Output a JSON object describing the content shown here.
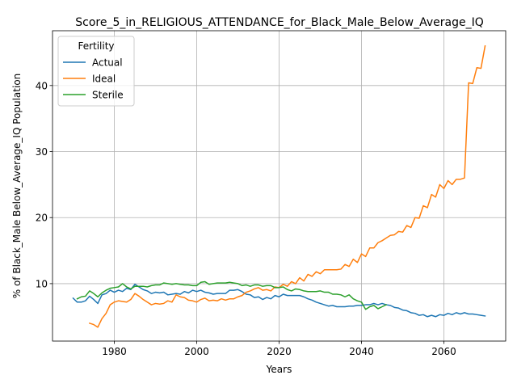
{
  "chart_data": {
    "type": "line",
    "title": "Score_5_in_RELIGIOUS_ATTENDANCE_for_Black_Male_Below_Average_IQ",
    "xlabel": "Years",
    "ylabel": "% of Black_Male Below_Average_IQ Population",
    "xlim": [
      1965,
      2075
    ],
    "ylim": [
      1.3,
      48.3
    ],
    "xticks": [
      1980,
      2000,
      2020,
      2040,
      2060
    ],
    "yticks": [
      10,
      20,
      30,
      40
    ],
    "grid": true,
    "legend": {
      "title": "Fertility",
      "placement": "top-left"
    },
    "series": [
      {
        "name": "Actual",
        "color": "#1f77b4",
        "points": [
          [
            1970,
            7.8
          ],
          [
            1971,
            7.2
          ],
          [
            1972,
            7.2
          ],
          [
            1973,
            7.4
          ],
          [
            1974,
            8.1
          ],
          [
            1975,
            7.6
          ],
          [
            1976,
            7.0
          ],
          [
            1977,
            8.3
          ],
          [
            1978,
            8.5
          ],
          [
            1979,
            9.0
          ],
          [
            1980,
            8.7
          ],
          [
            1981,
            9.0
          ],
          [
            1982,
            8.8
          ],
          [
            1983,
            9.3
          ],
          [
            1984,
            9.1
          ],
          [
            1985,
            9.9
          ],
          [
            1986,
            9.5
          ],
          [
            1987,
            9.1
          ],
          [
            1988,
            8.9
          ],
          [
            1989,
            8.5
          ],
          [
            1990,
            8.7
          ],
          [
            1991,
            8.6
          ],
          [
            1992,
            8.7
          ],
          [
            1993,
            8.3
          ],
          [
            1994,
            8.4
          ],
          [
            1995,
            8.5
          ],
          [
            1996,
            8.4
          ],
          [
            1997,
            8.8
          ],
          [
            1998,
            8.6
          ],
          [
            1999,
            9.0
          ],
          [
            2000,
            8.8
          ],
          [
            2001,
            9.0
          ],
          [
            2002,
            8.7
          ],
          [
            2003,
            8.6
          ],
          [
            2004,
            8.4
          ],
          [
            2005,
            8.5
          ],
          [
            2006,
            8.5
          ],
          [
            2007,
            8.5
          ],
          [
            2008,
            9.0
          ],
          [
            2009,
            9.0
          ],
          [
            2010,
            9.1
          ],
          [
            2011,
            8.8
          ],
          [
            2012,
            8.4
          ],
          [
            2013,
            8.3
          ],
          [
            2014,
            7.9
          ],
          [
            2015,
            8.0
          ],
          [
            2016,
            7.6
          ],
          [
            2017,
            7.9
          ],
          [
            2018,
            7.7
          ],
          [
            2019,
            8.2
          ],
          [
            2020,
            8.0
          ],
          [
            2021,
            8.4
          ],
          [
            2022,
            8.2
          ],
          [
            2023,
            8.2
          ],
          [
            2024,
            8.2
          ],
          [
            2025,
            8.2
          ],
          [
            2026,
            8.0
          ],
          [
            2027,
            7.7
          ],
          [
            2028,
            7.5
          ],
          [
            2029,
            7.2
          ],
          [
            2030,
            7.0
          ],
          [
            2031,
            6.8
          ],
          [
            2032,
            6.6
          ],
          [
            2033,
            6.7
          ],
          [
            2034,
            6.5
          ],
          [
            2035,
            6.5
          ],
          [
            2036,
            6.5
          ],
          [
            2037,
            6.6
          ],
          [
            2038,
            6.6
          ],
          [
            2039,
            6.7
          ],
          [
            2040,
            6.7
          ],
          [
            2041,
            6.8
          ],
          [
            2042,
            6.8
          ],
          [
            2043,
            7.0
          ],
          [
            2044,
            6.8
          ],
          [
            2045,
            7.0
          ],
          [
            2046,
            6.8
          ],
          [
            2047,
            6.7
          ],
          [
            2048,
            6.4
          ],
          [
            2049,
            6.3
          ],
          [
            2050,
            6.0
          ],
          [
            2051,
            5.9
          ],
          [
            2052,
            5.6
          ],
          [
            2053,
            5.5
          ],
          [
            2054,
            5.2
          ],
          [
            2055,
            5.3
          ],
          [
            2056,
            5.0
          ],
          [
            2057,
            5.2
          ],
          [
            2058,
            5.0
          ],
          [
            2059,
            5.3
          ],
          [
            2060,
            5.2
          ],
          [
            2061,
            5.5
          ],
          [
            2062,
            5.3
          ],
          [
            2063,
            5.6
          ],
          [
            2064,
            5.4
          ],
          [
            2065,
            5.6
          ],
          [
            2066,
            5.4
          ],
          [
            2067,
            5.4
          ],
          [
            2068,
            5.3
          ],
          [
            2069,
            5.2
          ],
          [
            2070,
            5.1
          ]
        ]
      },
      {
        "name": "Ideal",
        "color": "#ff7f0e",
        "points": [
          [
            1974,
            4.0
          ],
          [
            1975,
            3.8
          ],
          [
            1976,
            3.4
          ],
          [
            1977,
            4.7
          ],
          [
            1978,
            5.5
          ],
          [
            1979,
            6.8
          ],
          [
            1980,
            7.2
          ],
          [
            1981,
            7.4
          ],
          [
            1982,
            7.3
          ],
          [
            1983,
            7.2
          ],
          [
            1984,
            7.6
          ],
          [
            1985,
            8.5
          ],
          [
            1986,
            8.1
          ],
          [
            1987,
            7.6
          ],
          [
            1988,
            7.2
          ],
          [
            1989,
            6.8
          ],
          [
            1990,
            7.0
          ],
          [
            1991,
            6.9
          ],
          [
            1992,
            7.0
          ],
          [
            1993,
            7.4
          ],
          [
            1994,
            7.2
          ],
          [
            1995,
            8.3
          ],
          [
            1996,
            8.0
          ],
          [
            1997,
            7.9
          ],
          [
            1998,
            7.5
          ],
          [
            1999,
            7.4
          ],
          [
            2000,
            7.2
          ],
          [
            2001,
            7.6
          ],
          [
            2002,
            7.8
          ],
          [
            2003,
            7.4
          ],
          [
            2004,
            7.5
          ],
          [
            2005,
            7.4
          ],
          [
            2006,
            7.7
          ],
          [
            2007,
            7.5
          ],
          [
            2008,
            7.7
          ],
          [
            2009,
            7.7
          ],
          [
            2010,
            8.0
          ],
          [
            2011,
            8.2
          ],
          [
            2012,
            8.7
          ],
          [
            2013,
            8.9
          ],
          [
            2014,
            9.2
          ],
          [
            2015,
            9.4
          ],
          [
            2016,
            9.0
          ],
          [
            2017,
            9.1
          ],
          [
            2018,
            8.9
          ],
          [
            2019,
            9.5
          ],
          [
            2020,
            9.4
          ],
          [
            2021,
            9.9
          ],
          [
            2022,
            9.6
          ],
          [
            2023,
            10.3
          ],
          [
            2024,
            10.0
          ],
          [
            2025,
            10.9
          ],
          [
            2026,
            10.4
          ],
          [
            2027,
            11.4
          ],
          [
            2028,
            11.1
          ],
          [
            2029,
            11.8
          ],
          [
            2030,
            11.5
          ],
          [
            2031,
            12.1
          ],
          [
            2032,
            12.1
          ],
          [
            2033,
            12.1
          ],
          [
            2034,
            12.1
          ],
          [
            2035,
            12.2
          ],
          [
            2036,
            12.9
          ],
          [
            2037,
            12.6
          ],
          [
            2038,
            13.7
          ],
          [
            2039,
            13.2
          ],
          [
            2040,
            14.5
          ],
          [
            2041,
            14.1
          ],
          [
            2042,
            15.4
          ],
          [
            2043,
            15.4
          ],
          [
            2044,
            16.2
          ],
          [
            2045,
            16.5
          ],
          [
            2046,
            16.9
          ],
          [
            2047,
            17.3
          ],
          [
            2048,
            17.4
          ],
          [
            2049,
            17.9
          ],
          [
            2050,
            17.8
          ],
          [
            2051,
            18.8
          ],
          [
            2052,
            18.5
          ],
          [
            2053,
            20.0
          ],
          [
            2054,
            19.9
          ],
          [
            2055,
            21.8
          ],
          [
            2056,
            21.5
          ],
          [
            2057,
            23.5
          ],
          [
            2058,
            23.1
          ],
          [
            2059,
            25.0
          ],
          [
            2060,
            24.4
          ],
          [
            2061,
            25.6
          ],
          [
            2062,
            25.0
          ],
          [
            2063,
            25.8
          ],
          [
            2064,
            25.8
          ],
          [
            2065,
            26.0
          ],
          [
            2066,
            40.4
          ],
          [
            2067,
            40.3
          ],
          [
            2068,
            42.7
          ],
          [
            2069,
            42.6
          ],
          [
            2070,
            46.0
          ]
        ]
      },
      {
        "name": "Sterile",
        "color": "#2ca02c",
        "points": [
          [
            1971,
            7.7
          ],
          [
            1972,
            8.0
          ],
          [
            1973,
            8.1
          ],
          [
            1974,
            8.9
          ],
          [
            1975,
            8.5
          ],
          [
            1976,
            8.0
          ],
          [
            1977,
            8.6
          ],
          [
            1978,
            9.0
          ],
          [
            1979,
            9.3
          ],
          [
            1980,
            9.4
          ],
          [
            1981,
            9.5
          ],
          [
            1982,
            10.0
          ],
          [
            1983,
            9.5
          ],
          [
            1984,
            9.2
          ],
          [
            1985,
            9.6
          ],
          [
            1986,
            9.6
          ],
          [
            1987,
            9.6
          ],
          [
            1988,
            9.5
          ],
          [
            1989,
            9.7
          ],
          [
            1990,
            9.8
          ],
          [
            1991,
            9.8
          ],
          [
            1992,
            10.1
          ],
          [
            1993,
            10.0
          ],
          [
            1994,
            9.9
          ],
          [
            1995,
            10.0
          ],
          [
            1996,
            9.9
          ],
          [
            1997,
            9.8
          ],
          [
            1998,
            9.8
          ],
          [
            1999,
            9.7
          ],
          [
            2000,
            9.7
          ],
          [
            2001,
            10.2
          ],
          [
            2002,
            10.3
          ],
          [
            2003,
            9.9
          ],
          [
            2004,
            10.0
          ],
          [
            2005,
            10.1
          ],
          [
            2006,
            10.1
          ],
          [
            2007,
            10.1
          ],
          [
            2008,
            10.2
          ],
          [
            2009,
            10.1
          ],
          [
            2010,
            10.0
          ],
          [
            2011,
            9.7
          ],
          [
            2012,
            9.8
          ],
          [
            2013,
            9.6
          ],
          [
            2014,
            9.8
          ],
          [
            2015,
            9.8
          ],
          [
            2016,
            9.6
          ],
          [
            2017,
            9.7
          ],
          [
            2018,
            9.7
          ],
          [
            2019,
            9.4
          ],
          [
            2020,
            9.4
          ],
          [
            2021,
            9.5
          ],
          [
            2022,
            9.1
          ],
          [
            2023,
            8.9
          ],
          [
            2024,
            9.2
          ],
          [
            2025,
            9.1
          ],
          [
            2026,
            8.9
          ],
          [
            2027,
            8.8
          ],
          [
            2028,
            8.8
          ],
          [
            2029,
            8.8
          ],
          [
            2030,
            8.9
          ],
          [
            2031,
            8.7
          ],
          [
            2032,
            8.7
          ],
          [
            2033,
            8.4
          ],
          [
            2034,
            8.4
          ],
          [
            2035,
            8.3
          ],
          [
            2036,
            8.0
          ],
          [
            2037,
            8.3
          ],
          [
            2038,
            7.7
          ],
          [
            2039,
            7.4
          ],
          [
            2040,
            7.2
          ],
          [
            2041,
            6.1
          ],
          [
            2042,
            6.5
          ],
          [
            2043,
            6.7
          ],
          [
            2044,
            6.2
          ],
          [
            2045,
            6.5
          ],
          [
            2046,
            6.8
          ]
        ]
      }
    ]
  }
}
